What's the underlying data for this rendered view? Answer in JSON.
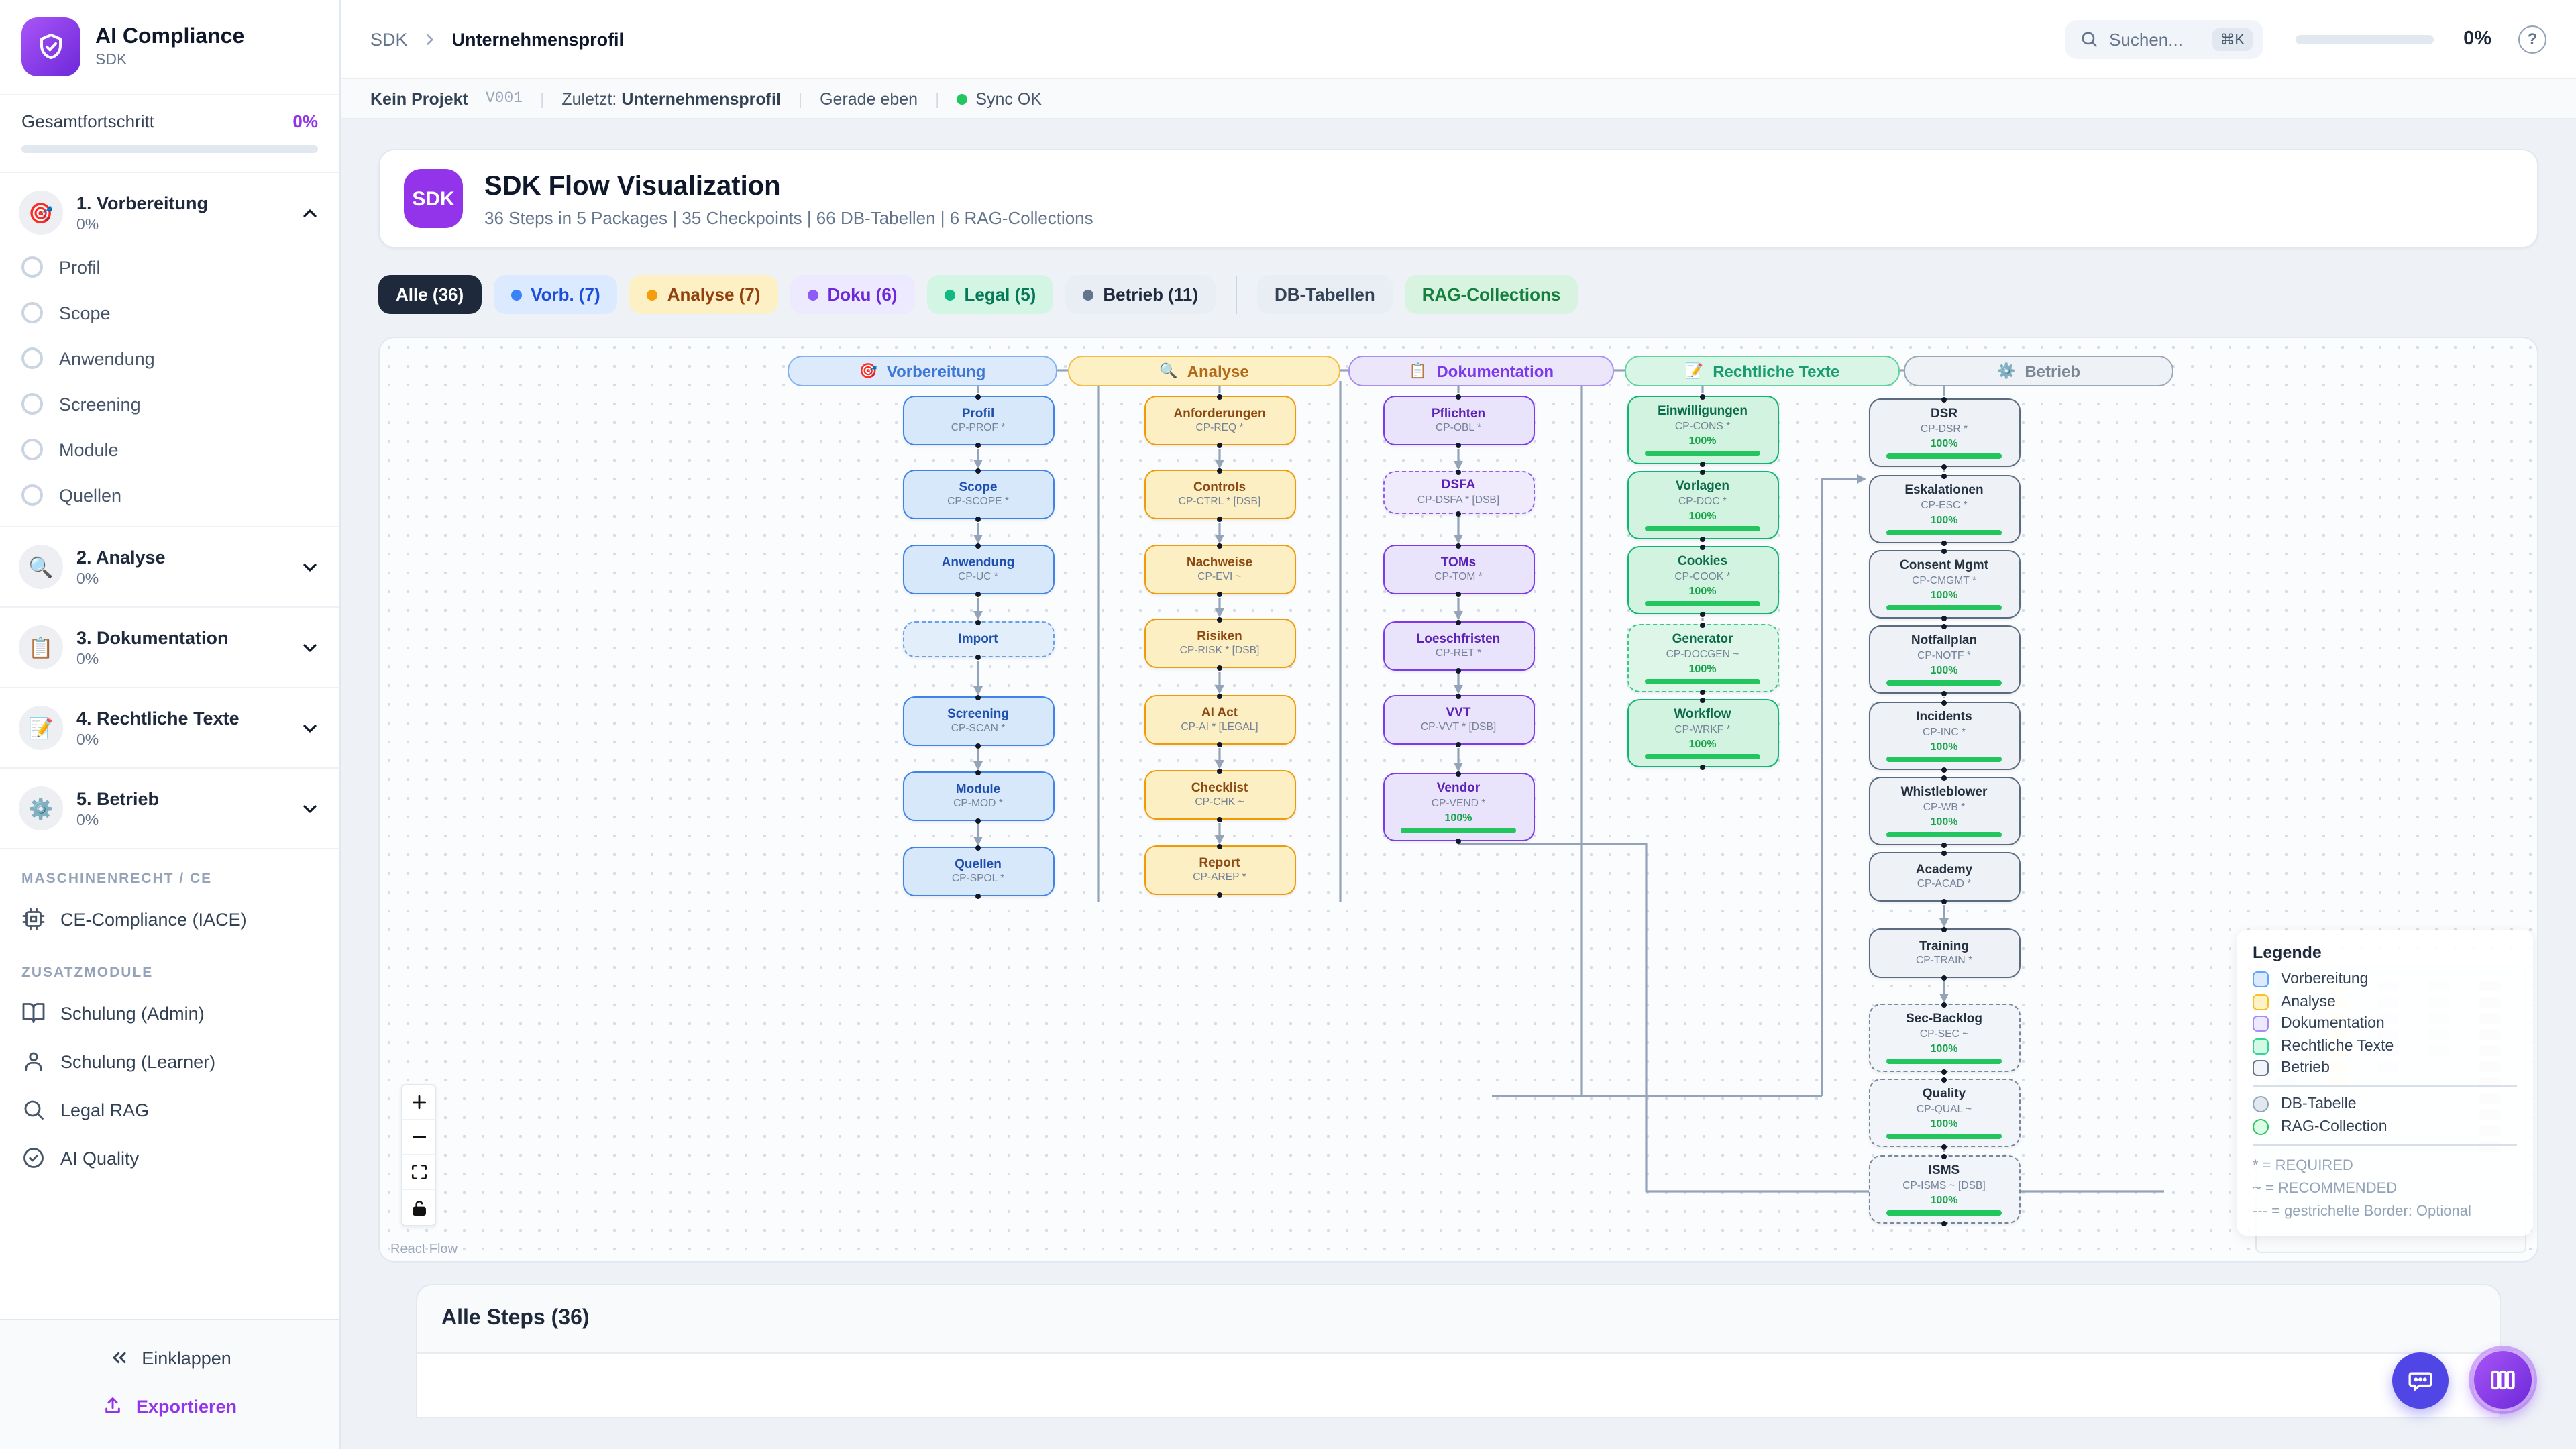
{
  "colors": {
    "brand": "#7c3aed",
    "accent_text": "#9333ea",
    "progress_green": "#22c55e",
    "sync_green": "#22c55e",
    "vorbereitung": "#3b82f6",
    "analyse": "#f59e0b",
    "dokumentation": "#8b5cf6",
    "rechtliche_texte": "#10b981",
    "betrieb": "#64748b"
  },
  "sidebar": {
    "logo_title": "AI Compliance",
    "logo_subtitle": "SDK",
    "progress_label": "Gesamtfortschritt",
    "progress_value": "0%",
    "sections": [
      {
        "icon": "🎯",
        "title": "1. Vorbereitung",
        "percent": "0%",
        "expanded": true,
        "items": [
          {
            "label": "Profil"
          },
          {
            "label": "Scope"
          },
          {
            "label": "Anwendung"
          },
          {
            "label": "Screening"
          },
          {
            "label": "Module"
          },
          {
            "label": "Quellen"
          }
        ]
      },
      {
        "icon": "🔍",
        "title": "2. Analyse",
        "percent": "0%"
      },
      {
        "icon": "📋",
        "title": "3. Dokumentation",
        "percent": "0%"
      },
      {
        "icon": "📝",
        "title": "4. Rechtliche Texte",
        "percent": "0%"
      },
      {
        "icon": "⚙️",
        "title": "5. Betrieb",
        "percent": "0%"
      }
    ],
    "group1_label": "MASCHINENRECHT / CE",
    "group1_items": [
      {
        "label": "CE-Compliance (IACE)"
      }
    ],
    "group2_label": "ZUSATZMODULE",
    "group2_items": [
      {
        "label": "Schulung (Admin)"
      },
      {
        "label": "Schulung (Learner)"
      },
      {
        "label": "Legal RAG"
      },
      {
        "label": "AI Quality"
      }
    ],
    "collapse_label": "Einklappen",
    "export_label": "Exportieren"
  },
  "header": {
    "breadcrumb": [
      "SDK",
      "Unternehmensprofil"
    ],
    "search_placeholder": "Suchen...",
    "search_shortcut": "⌘K",
    "progress_value": "0%",
    "help_glyph": "?"
  },
  "statusbar": {
    "project": "Kein Projekt",
    "version": "V001",
    "last_label": "Zuletzt:",
    "last_value": "Unternehmensprofil",
    "time": "Gerade eben",
    "sync": "Sync OK"
  },
  "hero": {
    "badge": "SDK",
    "title": "SDK Flow Visualization",
    "subtitle": "36 Steps in 5 Packages | 35 Checkpoints | 66 DB-Tabellen | 6 RAG-Collections"
  },
  "filters": {
    "chips": [
      {
        "label": "Alle (36)"
      },
      {
        "label": "Vorb. (7)"
      },
      {
        "label": "Analyse (7)"
      },
      {
        "label": "Doku (6)"
      },
      {
        "label": "Legal (5)"
      },
      {
        "label": "Betrieb (11)"
      },
      {
        "label": "DB-Tabellen"
      },
      {
        "label": "RAG-Collections"
      }
    ]
  },
  "flow": {
    "columns": [
      {
        "id": "vorb",
        "icon": "🎯",
        "title": "Vorbereitung",
        "nodes": [
          {
            "title": "Profil",
            "code": "CP-PROF *"
          },
          {
            "title": "Scope",
            "code": "CP-SCOPE *"
          },
          {
            "title": "Anwendung",
            "code": "CP-UC *"
          },
          {
            "title": "Import",
            "dashed": true
          },
          {
            "title": "Screening",
            "code": "CP-SCAN *"
          },
          {
            "title": "Module",
            "code": "CP-MOD *"
          },
          {
            "title": "Quellen",
            "code": "CP-SPOL *"
          }
        ]
      },
      {
        "id": "analyse",
        "icon": "🔍",
        "title": "Analyse",
        "nodes": [
          {
            "title": "Anforderungen",
            "code": "CP-REQ *"
          },
          {
            "title": "Controls",
            "code": "CP-CTRL * [DSB]"
          },
          {
            "title": "Nachweise",
            "code": "CP-EVI ~"
          },
          {
            "title": "Risiken",
            "code": "CP-RISK * [DSB]"
          },
          {
            "title": "AI Act",
            "code": "CP-AI * [LEGAL]"
          },
          {
            "title": "Checklist",
            "code": "CP-CHK ~"
          },
          {
            "title": "Report",
            "code": "CP-AREP *"
          }
        ]
      },
      {
        "id": "doku",
        "icon": "📋",
        "title": "Dokumentation",
        "nodes": [
          {
            "title": "Pflichten",
            "code": "CP-OBL *"
          },
          {
            "title": "DSFA",
            "code": "CP-DSFA * [DSB]",
            "dashed": true
          },
          {
            "title": "TOMs",
            "code": "CP-TOM *"
          },
          {
            "title": "Loeschfristen",
            "code": "CP-RET *"
          },
          {
            "title": "VVT",
            "code": "CP-VVT * [DSB]"
          },
          {
            "title": "Vendor",
            "code": "CP-VEND *",
            "progress": "100%"
          }
        ]
      },
      {
        "id": "legal",
        "icon": "📝",
        "title": "Rechtliche Texte",
        "nodes": [
          {
            "title": "Einwilligungen",
            "code": "CP-CONS *",
            "progress": "100%"
          },
          {
            "title": "Vorlagen",
            "code": "CP-DOC *",
            "progress": "100%"
          },
          {
            "title": "Cookies",
            "code": "CP-COOK *",
            "progress": "100%"
          },
          {
            "title": "Generator",
            "code": "CP-DOCGEN ~",
            "progress": "100%",
            "dashed": true
          },
          {
            "title": "Workflow",
            "code": "CP-WRKF *",
            "progress": "100%"
          }
        ]
      },
      {
        "id": "betrieb",
        "icon": "⚙️",
        "title": "Betrieb",
        "nodes": [
          {
            "title": "DSR",
            "code": "CP-DSR *",
            "progress": "100%"
          },
          {
            "title": "Eskalationen",
            "code": "CP-ESC *",
            "progress": "100%"
          },
          {
            "title": "Consent Mgmt",
            "code": "CP-CMGMT *",
            "progress": "100%"
          },
          {
            "title": "Notfallplan",
            "code": "CP-NOTF *",
            "progress": "100%"
          },
          {
            "title": "Incidents",
            "code": "CP-INC *",
            "progress": "100%"
          },
          {
            "title": "Whistleblower",
            "code": "CP-WB *",
            "progress": "100%"
          },
          {
            "title": "Academy",
            "code": "CP-ACAD *"
          },
          {
            "title": "Training",
            "code": "CP-TRAIN *"
          },
          {
            "title": "Sec-Backlog",
            "code": "CP-SEC ~",
            "progress": "100%",
            "dashed": true
          },
          {
            "title": "Quality",
            "code": "CP-QUAL ~",
            "progress": "100%",
            "dashed": true
          },
          {
            "title": "ISMS",
            "code": "CP-ISMS ~ [DSB]",
            "progress": "100%",
            "dashed": true
          }
        ]
      }
    ],
    "legend": {
      "title": "Legende",
      "categories": [
        {
          "label": "Vorbereitung"
        },
        {
          "label": "Analyse"
        },
        {
          "label": "Dokumentation"
        },
        {
          "label": "Rechtliche Texte"
        },
        {
          "label": "Betrieb"
        }
      ],
      "shapes": [
        {
          "label": "DB-Tabelle"
        },
        {
          "label": "RAG-Collection"
        }
      ],
      "notes": [
        "* = REQUIRED",
        "~ = RECOMMENDED",
        "--- = gestrichelte Border: Optional"
      ]
    },
    "attribution": "React Flow"
  },
  "steps_panel": {
    "title": "Alle Steps (36)"
  }
}
